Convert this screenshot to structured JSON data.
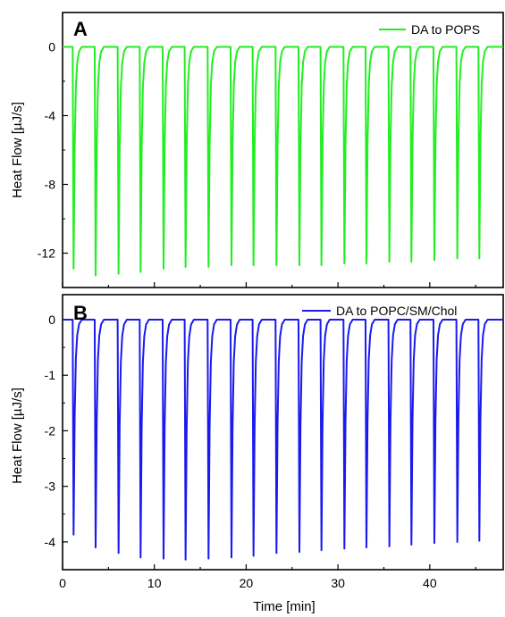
{
  "chart_data": [
    {
      "panel": "A",
      "type": "line",
      "ylabel": "Heat Flow   [µJ/s]",
      "xlim": [
        0,
        48
      ],
      "ylim": [
        -14,
        2
      ],
      "yticks": [
        0,
        -4,
        -8,
        -12
      ],
      "color": "#22ee22",
      "series": [
        {
          "name": "DA to POPS",
          "baseline": 0,
          "peak_times": [
            1.2,
            3.6,
            6.1,
            8.5,
            11.0,
            13.4,
            15.9,
            18.4,
            20.8,
            23.3,
            25.8,
            28.2,
            30.7,
            33.1,
            35.6,
            38.0,
            40.5,
            43.0,
            45.4
          ],
          "peak_values": [
            -12.9,
            -13.3,
            -13.2,
            -13.1,
            -12.9,
            -12.8,
            -12.8,
            -12.7,
            -12.7,
            -12.7,
            -12.7,
            -12.7,
            -12.6,
            -12.6,
            -12.5,
            -12.5,
            -12.4,
            -12.3,
            -12.3
          ]
        }
      ]
    },
    {
      "panel": "B",
      "type": "line",
      "xlabel": "Time   [min]",
      "ylabel": "Heat Flow   [µJ/s]",
      "xlim": [
        0,
        48
      ],
      "ylim": [
        -4.5,
        0.45
      ],
      "xticks": [
        0,
        10,
        20,
        30,
        40
      ],
      "yticks": [
        0,
        -1,
        -2,
        -3,
        -4
      ],
      "color": "#1a1aee",
      "series": [
        {
          "name": "DA to POPC/SM/Chol",
          "baseline": 0,
          "peak_times": [
            1.2,
            3.6,
            6.1,
            8.5,
            11.0,
            13.4,
            15.9,
            18.4,
            20.8,
            23.3,
            25.8,
            28.2,
            30.7,
            33.1,
            35.6,
            38.0,
            40.5,
            43.0,
            45.4
          ],
          "peak_values": [
            -3.87,
            -4.1,
            -4.2,
            -4.28,
            -4.3,
            -4.32,
            -4.3,
            -4.28,
            -4.25,
            -4.2,
            -4.18,
            -4.15,
            -4.12,
            -4.1,
            -4.08,
            -4.05,
            -4.02,
            -4.0,
            -3.98
          ]
        }
      ]
    }
  ]
}
